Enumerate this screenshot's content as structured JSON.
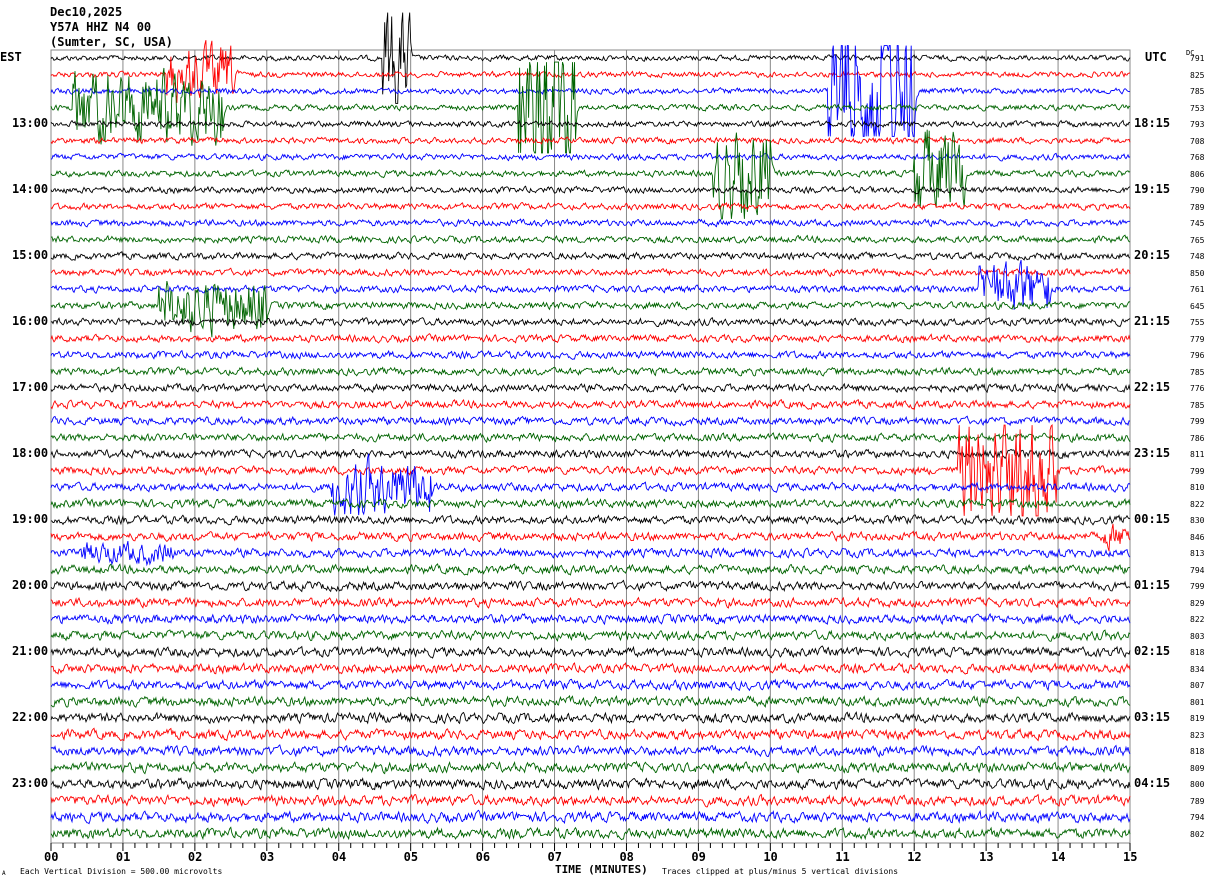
{
  "header": {
    "date": "Dec10,2025",
    "station": "Y57A HHZ N4 00",
    "location": "(Sumter, SC, USA)",
    "left_tz": "EST",
    "right_tz": "UTC",
    "dc_label": "DC"
  },
  "footer": {
    "scale": "Each Vertical Division =  500.00 microvolts",
    "clip_note": "Traces clipped at plus/minus 5 vertical divisions",
    "corner_mark": "A"
  },
  "chart_data": {
    "type": "line",
    "title": "",
    "xlabel": "TIME (MINUTES)",
    "xlim": [
      0,
      15
    ],
    "x_tick_labels": [
      "00",
      "01",
      "02",
      "03",
      "04",
      "05",
      "06",
      "07",
      "08",
      "09",
      "10",
      "11",
      "12",
      "13",
      "14",
      "15"
    ],
    "trace_duration_minutes": 15,
    "trace_colors": [
      "#000000",
      "#ff0000",
      "#0000ff",
      "#006400"
    ],
    "left_hour_labels": [
      "13:00",
      "14:00",
      "15:00",
      "16:00",
      "17:00",
      "18:00",
      "19:00",
      "20:00",
      "21:00",
      "22:00",
      "23:00"
    ],
    "right_hour_labels": [
      "18:15",
      "19:15",
      "20:15",
      "21:15",
      "22:15",
      "23:15",
      "00:15",
      "01:15",
      "02:15",
      "03:15",
      "04:15"
    ],
    "dc_offsets": [
      "791",
      "825",
      "785",
      "753",
      "793",
      "708",
      "768",
      "806",
      "790",
      "789",
      "745",
      "765",
      "748",
      "850",
      "761",
      "645",
      "755",
      "779",
      "796",
      "785",
      "776",
      "785",
      "799",
      "786",
      "811",
      "799",
      "810",
      "822",
      "830",
      "846",
      "813",
      "794",
      "799",
      "829",
      "822",
      "803",
      "818",
      "834",
      "807",
      "801",
      "819",
      "823",
      "818",
      "809",
      "800",
      "789",
      "794",
      "802"
    ],
    "events": [
      {
        "trace": 0,
        "start_min": 4.6,
        "end_min": 5.0,
        "amplitude_div": 3
      },
      {
        "trace": 1,
        "start_min": 1.6,
        "end_min": 2.6,
        "amplitude_div": 1.5
      },
      {
        "trace": 3,
        "start_min": 0.3,
        "end_min": 2.4,
        "amplitude_div": 2
      },
      {
        "trace": 3,
        "start_min": 6.5,
        "end_min": 7.3,
        "amplitude_div": 5
      },
      {
        "trace": 2,
        "start_min": 10.8,
        "end_min": 12.0,
        "amplitude_div": 5
      },
      {
        "trace": 7,
        "start_min": 9.2,
        "end_min": 10.0,
        "amplitude_div": 2.5
      },
      {
        "trace": 7,
        "start_min": 12.0,
        "end_min": 12.7,
        "amplitude_div": 2.5
      },
      {
        "trace": 14,
        "start_min": 12.9,
        "end_min": 13.9,
        "amplitude_div": 1.5
      },
      {
        "trace": 15,
        "start_min": 1.5,
        "end_min": 3.0,
        "amplitude_div": 1.5
      },
      {
        "trace": 25,
        "start_min": 12.6,
        "end_min": 14.0,
        "amplitude_div": 3
      },
      {
        "trace": 26,
        "start_min": 3.9,
        "end_min": 5.3,
        "amplitude_div": 1.5
      },
      {
        "trace": 29,
        "start_min": 14.6,
        "end_min": 15.0,
        "amplitude_div": 0.7
      },
      {
        "trace": 30,
        "start_min": 0.4,
        "end_min": 1.7,
        "amplitude_div": 0.6
      }
    ]
  }
}
